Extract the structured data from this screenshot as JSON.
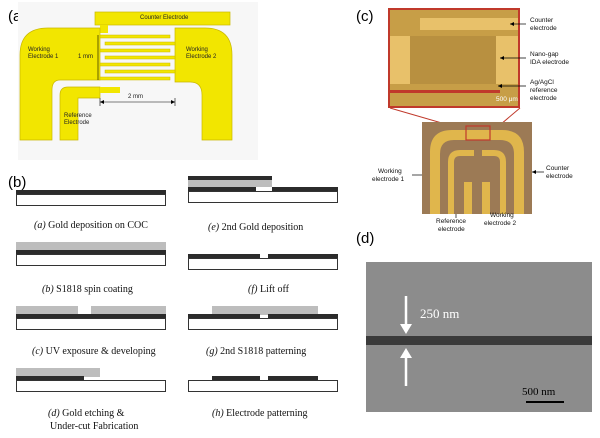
{
  "panels": {
    "a": {
      "letter": "(a)",
      "counter_label": "Counter Electrode",
      "we1_label_1": "Working",
      "we1_label_2": "Electrode 1",
      "we2_label_1": "Working",
      "we2_label_2": "Electrode 2",
      "ref_label_1": "Reference",
      "ref_label_2": "Electrode",
      "dim_vertical": "1 mm",
      "dim_horizontal": "2 mm"
    },
    "b": {
      "letter": "(b)",
      "steps": [
        {
          "letter": "(a)",
          "text": "Gold deposition on COC"
        },
        {
          "letter": "(b)",
          "text": "S1818 spin coating"
        },
        {
          "letter": "(c)",
          "text": "UV exposure & developing"
        },
        {
          "letter": "(d)",
          "text": "Gold etching &",
          "text2": "Under-cut Fabrication"
        },
        {
          "letter": "(e)",
          "text": "2nd Gold deposition"
        },
        {
          "letter": "(f)",
          "text": "Lift off"
        },
        {
          "letter": "(g)",
          "text": "2nd S1818 patterning"
        },
        {
          "letter": "(h)",
          "text": "Electrode patterning"
        }
      ]
    },
    "c": {
      "letter": "(c)",
      "counter": [
        "Counter",
        "electrode"
      ],
      "nanogap": [
        "Nano-gap",
        "IDA electrode"
      ],
      "agcl": [
        "Ag/AgCl",
        "reference",
        "electrode"
      ],
      "scale": "500 μm",
      "we1": [
        "Working",
        "electrode 1"
      ],
      "counter2": [
        "Counter",
        "electrode"
      ],
      "ref": [
        "Reference",
        "electrode"
      ],
      "we2": [
        "Working",
        "electrode 2"
      ]
    },
    "d": {
      "letter": "(d)",
      "gap": "250 nm",
      "scale": "500 nm"
    }
  },
  "colors": {
    "electrode_yellow": "#f2e600",
    "electrode_outline": "#c9b800",
    "gold_photo": "#d9a23a",
    "sem_background": "#8c8c8c"
  }
}
